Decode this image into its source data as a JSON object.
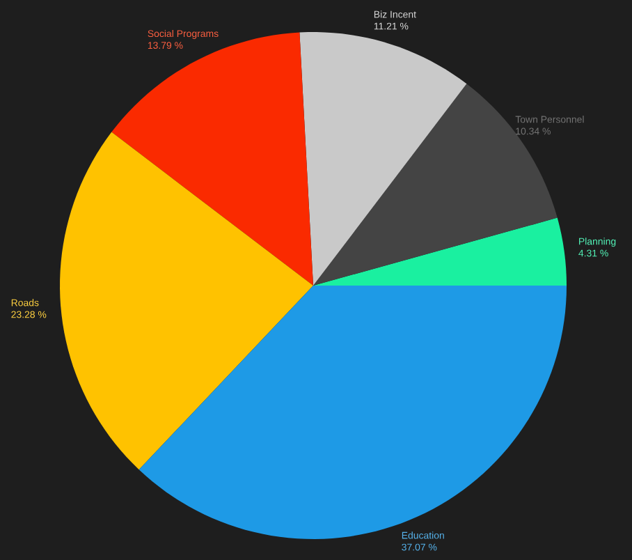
{
  "chart_data": {
    "type": "pie",
    "categories": [
      "Planning",
      "Town Personnel",
      "Biz Incent",
      "Social Programs",
      "Roads",
      "Education"
    ],
    "values": [
      4.31,
      10.34,
      11.21,
      13.79,
      23.28,
      37.07
    ],
    "colors": [
      "#1af0a0",
      "#444444",
      "#c9c9c9",
      "#fa2a00",
      "#ffc200",
      "#1e9ae6"
    ],
    "value_labels": [
      "4.31 %",
      "10.34 %",
      "11.21 %",
      "13.79 %",
      "23.28 %",
      "37.07 %"
    ]
  }
}
